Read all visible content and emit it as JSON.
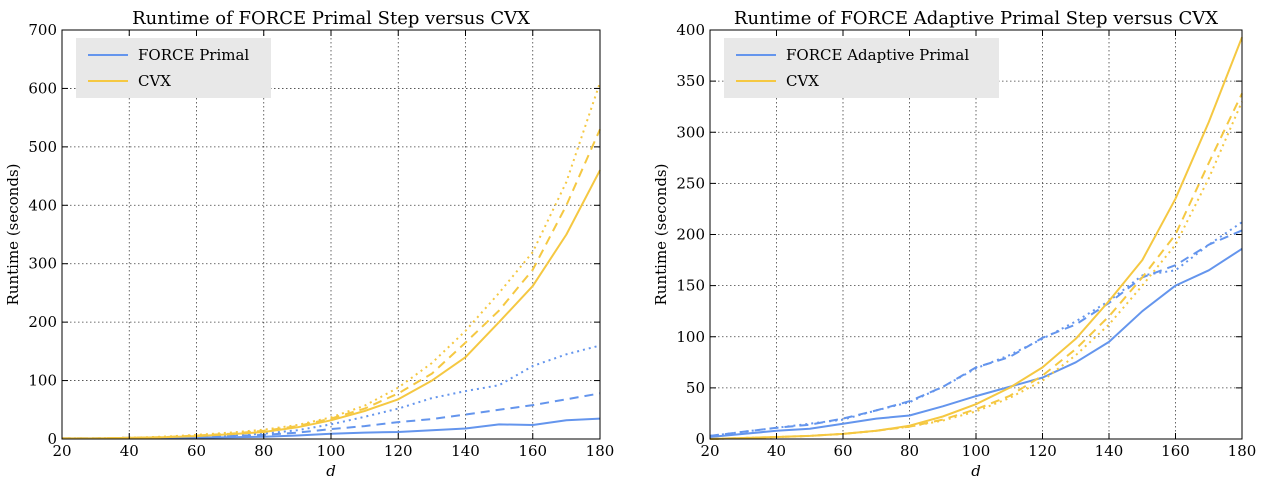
{
  "chart_data": [
    {
      "type": "line",
      "title": "Runtime of FORCE Primal Step versus CVX",
      "xlabel": "d",
      "ylabel": "Runtime (seconds)",
      "xlim": [
        20,
        180
      ],
      "ylim": [
        0,
        700
      ],
      "xticks": [
        20,
        40,
        60,
        80,
        100,
        120,
        140,
        160,
        180
      ],
      "yticks": [
        0,
        100,
        200,
        300,
        400,
        500,
        600,
        700
      ],
      "grid": true,
      "legend_position": "top-left",
      "legend": [
        {
          "label": "FORCE Primal",
          "color": "#6495ED"
        },
        {
          "label": "CVX",
          "color": "#F5C842"
        }
      ],
      "x": [
        20,
        30,
        40,
        50,
        60,
        70,
        80,
        90,
        100,
        110,
        120,
        130,
        140,
        150,
        160,
        170,
        180
      ],
      "series": [
        {
          "group": "FORCE Primal",
          "color": "#6495ED",
          "style": "solid",
          "values": [
            1,
            1,
            1,
            2,
            2,
            3,
            4,
            6,
            9,
            11,
            12,
            15,
            18,
            25,
            24,
            32,
            35
          ]
        },
        {
          "group": "FORCE Primal",
          "color": "#6495ED",
          "style": "dashed",
          "values": [
            1,
            1,
            2,
            2,
            3,
            5,
            7,
            11,
            17,
            22,
            29,
            34,
            42,
            50,
            58,
            68,
            78
          ]
        },
        {
          "group": "FORCE Primal",
          "color": "#6495ED",
          "style": "dotted",
          "values": [
            1,
            1,
            2,
            3,
            4,
            6,
            9,
            15,
            25,
            38,
            52,
            70,
            82,
            92,
            125,
            145,
            160
          ]
        },
        {
          "group": "CVX",
          "color": "#F5C842",
          "style": "solid",
          "values": [
            1,
            1,
            2,
            3,
            5,
            8,
            12,
            20,
            32,
            48,
            68,
            100,
            140,
            200,
            262,
            350,
            460
          ]
        },
        {
          "group": "CVX",
          "color": "#F5C842",
          "style": "dashed",
          "values": [
            1,
            1,
            2,
            3,
            6,
            9,
            14,
            22,
            35,
            52,
            78,
            112,
            165,
            220,
            290,
            400,
            530
          ]
        },
        {
          "group": "CVX",
          "color": "#F5C842",
          "style": "dotted",
          "values": [
            1,
            1,
            2,
            4,
            7,
            11,
            16,
            24,
            37,
            57,
            88,
            130,
            185,
            250,
            320,
            440,
            610
          ]
        }
      ]
    },
    {
      "type": "line",
      "title": "Runtime of FORCE Adaptive Primal Step versus CVX",
      "xlabel": "d",
      "ylabel": "Runtime (seconds)",
      "xlim": [
        20,
        180
      ],
      "ylim": [
        0,
        400
      ],
      "xticks": [
        20,
        40,
        60,
        80,
        100,
        120,
        140,
        160,
        180
      ],
      "yticks": [
        0,
        50,
        100,
        150,
        200,
        250,
        300,
        350,
        400
      ],
      "grid": true,
      "legend_position": "top-left",
      "legend": [
        {
          "label": "FORCE Adaptive Primal",
          "color": "#6495ED"
        },
        {
          "label": "CVX",
          "color": "#F5C842"
        }
      ],
      "x": [
        20,
        30,
        40,
        50,
        60,
        70,
        80,
        90,
        100,
        110,
        120,
        130,
        140,
        150,
        160,
        170,
        180
      ],
      "series": [
        {
          "group": "FORCE Adaptive Primal",
          "color": "#6495ED",
          "style": "solid",
          "values": [
            2,
            5,
            8,
            10,
            15,
            20,
            23,
            32,
            42,
            51,
            60,
            75,
            95,
            125,
            150,
            165,
            186
          ]
        },
        {
          "group": "FORCE Adaptive Primal",
          "color": "#6495ED",
          "style": "dashed",
          "values": [
            3,
            7,
            11,
            14,
            20,
            28,
            37,
            51,
            70,
            80,
            99,
            112,
            133,
            158,
            170,
            190,
            204
          ]
        },
        {
          "group": "FORCE Adaptive Primal",
          "color": "#6495ED",
          "style": "dotted",
          "values": [
            3,
            7,
            11,
            15,
            19,
            28,
            36,
            51,
            69,
            82,
            98,
            115,
            135,
            160,
            165,
            190,
            212
          ]
        },
        {
          "group": "CVX",
          "color": "#F5C842",
          "style": "solid",
          "values": [
            0,
            1,
            2,
            3,
            5,
            8,
            13,
            22,
            34,
            50,
            70,
            98,
            135,
            175,
            235,
            310,
            393
          ]
        },
        {
          "group": "CVX",
          "color": "#F5C842",
          "style": "dashed",
          "values": [
            0,
            1,
            2,
            3,
            5,
            8,
            12,
            19,
            29,
            42,
            62,
            88,
            120,
            158,
            200,
            270,
            338
          ]
        },
        {
          "group": "CVX",
          "color": "#F5C842",
          "style": "dotted",
          "values": [
            0,
            1,
            2,
            3,
            5,
            8,
            12,
            18,
            27,
            40,
            57,
            82,
            112,
            150,
            190,
            255,
            330
          ]
        }
      ]
    }
  ]
}
